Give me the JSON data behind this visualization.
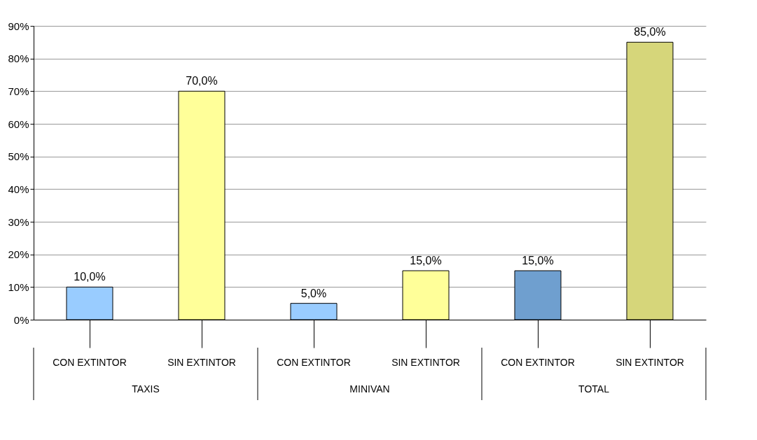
{
  "chart_data": {
    "type": "bar",
    "categories": [
      "CON EXTINTOR",
      "SIN EXTINTOR",
      "CON EXTINTOR",
      "SIN EXTINTOR",
      "CON EXTINTOR",
      "SIN EXTINTOR"
    ],
    "values": [
      10,
      70,
      5,
      15,
      15,
      85
    ],
    "colors": [
      "#99ccff",
      "#ffff99",
      "#99ccff",
      "#ffff99",
      "#6f9fcf",
      "#d6d67a"
    ],
    "value_labels": [
      "10,0%",
      "70,0%",
      "5,0%",
      "15,0%",
      "15,0%",
      "85,0%"
    ],
    "annotations": [
      "TAXIS",
      "MINIVAN",
      "TOTAL"
    ],
    "ylim": [
      0,
      90
    ],
    "yticks": [
      {
        "value": 0,
        "label": "0%"
      },
      {
        "value": 10,
        "label": "10%"
      },
      {
        "value": 20,
        "label": "20%"
      },
      {
        "value": 30,
        "label": "30%"
      },
      {
        "value": 40,
        "label": "40%"
      },
      {
        "value": 50,
        "label": "50%"
      },
      {
        "value": 60,
        "label": "60%"
      },
      {
        "value": 70,
        "label": "70%"
      },
      {
        "value": 80,
        "label": "80%"
      },
      {
        "value": 90,
        "label": "90%"
      }
    ],
    "grid": "y"
  }
}
